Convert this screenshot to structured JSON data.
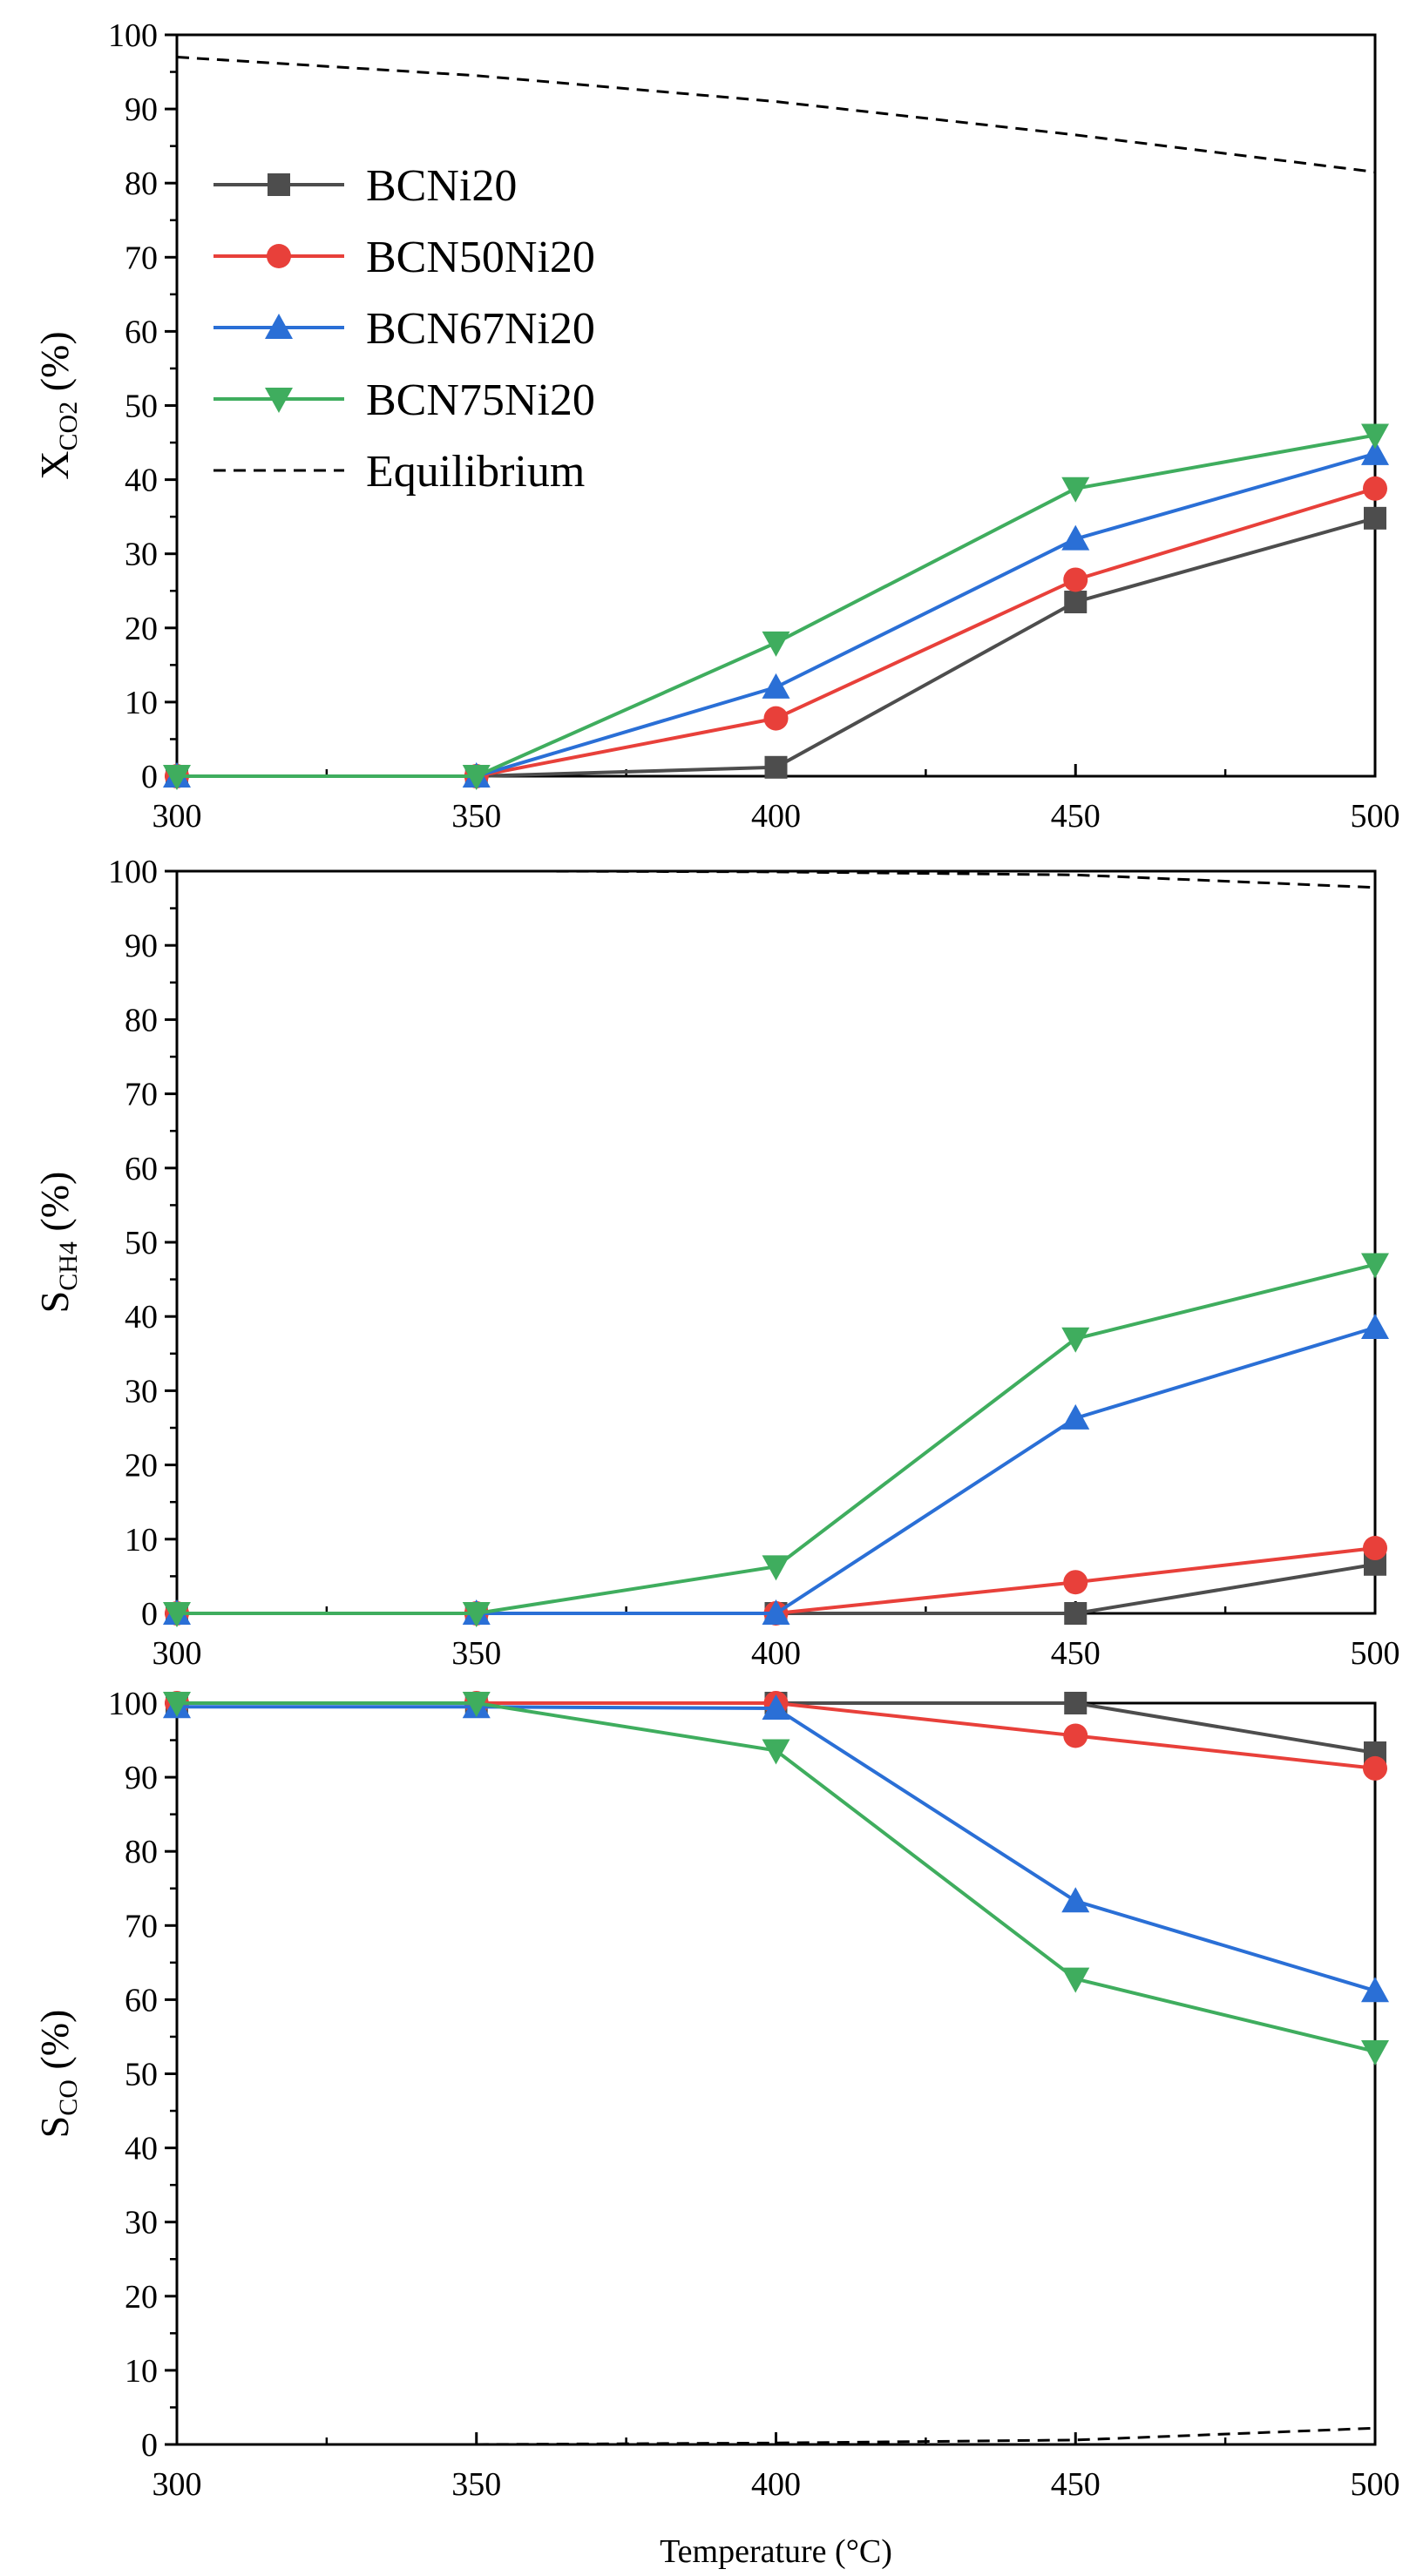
{
  "chart_data": [
    {
      "type": "line",
      "id": "xco2",
      "ylabel_main": "X",
      "ylabel_sub": "CO2",
      "ylabel_unit": " (%)",
      "x": [
        300,
        350,
        400,
        450,
        500
      ],
      "xlim": [
        300,
        500
      ],
      "ylim": [
        0,
        100
      ],
      "yticks": [
        0,
        10,
        20,
        30,
        40,
        50,
        60,
        70,
        80,
        90,
        100
      ],
      "xticks": [
        300,
        350,
        400,
        450,
        500
      ],
      "legend_position": "top-left",
      "series": [
        {
          "name": "BCNi20",
          "color": "#4d4d4d",
          "marker": "square",
          "values": [
            0,
            0,
            1.2,
            23.5,
            34.8
          ]
        },
        {
          "name": "BCN50Ni20",
          "color": "#e8403a",
          "marker": "circle",
          "values": [
            0,
            0,
            7.8,
            26.5,
            38.8
          ]
        },
        {
          "name": "BCN67Ni20",
          "color": "#2a6fd6",
          "marker": "triangle-up",
          "values": [
            0,
            0,
            12.0,
            32.0,
            43.5
          ]
        },
        {
          "name": "BCN75Ni20",
          "color": "#3fad5e",
          "marker": "triangle-down",
          "values": [
            0,
            0,
            18.0,
            38.8,
            46.0
          ]
        }
      ],
      "equilibrium": {
        "name": "Equilibrium",
        "x": [
          300,
          350,
          400,
          450,
          500
        ],
        "values": [
          97.0,
          94.5,
          91.0,
          86.5,
          81.5
        ]
      }
    },
    {
      "type": "line",
      "id": "sch4",
      "ylabel_main": "S",
      "ylabel_sub": "CH4",
      "ylabel_unit": " (%)",
      "x": [
        300,
        350,
        400,
        450,
        500
      ],
      "xlim": [
        300,
        500
      ],
      "ylim": [
        0,
        100
      ],
      "yticks": [
        0,
        10,
        20,
        30,
        40,
        50,
        60,
        70,
        80,
        90,
        100
      ],
      "xticks": [
        300,
        350,
        400,
        450,
        500
      ],
      "series": [
        {
          "name": "BCNi20",
          "color": "#4d4d4d",
          "marker": "square",
          "values": [
            0,
            0,
            0,
            0,
            6.6
          ]
        },
        {
          "name": "BCN50Ni20",
          "color": "#e8403a",
          "marker": "circle",
          "values": [
            0,
            0,
            0,
            4.2,
            8.8
          ]
        },
        {
          "name": "BCN67Ni20",
          "color": "#2a6fd6",
          "marker": "triangle-up",
          "values": [
            0,
            0,
            0,
            26.3,
            38.5
          ]
        },
        {
          "name": "BCN75Ni20",
          "color": "#3fad5e",
          "marker": "triangle-down",
          "values": [
            0,
            0,
            6.3,
            37.0,
            47.0
          ]
        }
      ],
      "equilibrium": {
        "name": "Equilibrium",
        "x": [
          360,
          400,
          450,
          500
        ],
        "values": [
          100,
          99.9,
          99.5,
          97.8
        ]
      }
    },
    {
      "type": "line",
      "id": "sco",
      "ylabel_main": "S",
      "ylabel_sub": "CO",
      "ylabel_unit": " (%)",
      "xlabel": "Temperature (°C)",
      "x": [
        300,
        350,
        400,
        450,
        500
      ],
      "xlim": [
        300,
        500
      ],
      "ylim": [
        0,
        100
      ],
      "yticks": [
        0,
        10,
        20,
        30,
        40,
        50,
        60,
        70,
        80,
        90,
        100
      ],
      "xticks": [
        300,
        350,
        400,
        450,
        500
      ],
      "series": [
        {
          "name": "BCNi20",
          "color": "#4d4d4d",
          "marker": "square",
          "values": [
            100,
            100,
            100,
            100,
            93.3
          ]
        },
        {
          "name": "BCN50Ni20",
          "color": "#e8403a",
          "marker": "circle",
          "values": [
            100,
            100,
            100,
            95.6,
            91.2
          ]
        },
        {
          "name": "BCN67Ni20",
          "color": "#2a6fd6",
          "marker": "triangle-up",
          "values": [
            99.5,
            99.5,
            99.3,
            73.3,
            61.2
          ]
        },
        {
          "name": "BCN75Ni20",
          "color": "#3fad5e",
          "marker": "triangle-down",
          "values": [
            100,
            100,
            93.6,
            62.8,
            53.0
          ]
        }
      ],
      "equilibrium": {
        "name": "Equilibrium",
        "x": [
          350,
          400,
          450,
          500
        ],
        "values": [
          0,
          0.2,
          0.6,
          2.2
        ]
      }
    }
  ]
}
